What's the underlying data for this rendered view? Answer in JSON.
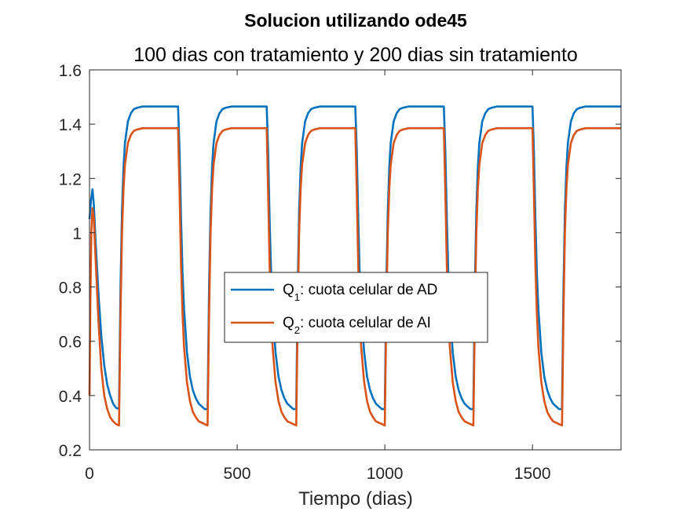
{
  "chart_data": {
    "type": "line",
    "title": "Solucion utilizando ode45",
    "subtitle": "100 dias con tratamiento y 200 dias sin tratamiento",
    "xlabel": "Tiempo (dias)",
    "ylabel": "",
    "xlim": [
      0,
      1800
    ],
    "ylim": [
      0.2,
      1.6
    ],
    "xticks": [
      "0",
      "500",
      "1000",
      "1500"
    ],
    "yticks": [
      "0.2",
      "0.4",
      "0.6",
      "0.8",
      "1",
      "1.2",
      "1.4",
      "1.6"
    ],
    "grid": false,
    "legend_position": "center",
    "series": [
      {
        "name": "Q",
        "name_sub": "1",
        "name_rest": ": cuota celular de AD",
        "color": "#0072BD",
        "x": [
          0,
          5,
          10,
          15,
          20,
          30,
          40,
          50,
          60,
          70,
          80,
          90,
          100,
          105,
          110,
          115,
          120,
          130,
          140,
          150,
          160,
          180,
          200,
          250,
          300,
          305,
          310,
          315,
          320,
          330,
          340,
          350,
          360,
          370,
          380,
          390,
          400,
          405,
          410,
          415,
          420,
          430,
          440,
          450,
          460,
          480,
          500,
          550,
          600,
          605,
          610,
          615,
          620,
          630,
          640,
          650,
          660,
          670,
          680,
          690,
          700,
          705,
          710,
          715,
          720,
          730,
          740,
          750,
          760,
          780,
          800,
          850,
          900,
          905,
          910,
          915,
          920,
          930,
          940,
          950,
          960,
          970,
          980,
          990,
          1000,
          1005,
          1010,
          1015,
          1020,
          1030,
          1040,
          1050,
          1060,
          1080,
          1100,
          1150,
          1200,
          1205,
          1210,
          1215,
          1220,
          1230,
          1240,
          1250,
          1260,
          1270,
          1280,
          1290,
          1300,
          1305,
          1310,
          1315,
          1320,
          1330,
          1340,
          1350,
          1360,
          1380,
          1400,
          1450,
          1500,
          1505,
          1510,
          1515,
          1520,
          1530,
          1540,
          1550,
          1560,
          1570,
          1580,
          1590,
          1600,
          1605,
          1610,
          1615,
          1620,
          1630,
          1640,
          1650,
          1660,
          1680,
          1700,
          1750,
          1800
        ],
        "y": [
          1.05,
          1.12,
          1.16,
          1.1,
          0.98,
          0.78,
          0.62,
          0.51,
          0.44,
          0.4,
          0.37,
          0.355,
          0.35,
          0.8,
          1.08,
          1.24,
          1.33,
          1.41,
          1.44,
          1.455,
          1.46,
          1.465,
          1.465,
          1.465,
          1.465,
          1.3,
          1.05,
          0.85,
          0.72,
          0.56,
          0.47,
          0.42,
          0.39,
          0.37,
          0.36,
          0.35,
          0.35,
          0.8,
          1.08,
          1.24,
          1.33,
          1.41,
          1.44,
          1.455,
          1.46,
          1.465,
          1.465,
          1.465,
          1.465,
          1.3,
          1.05,
          0.85,
          0.72,
          0.56,
          0.47,
          0.42,
          0.39,
          0.37,
          0.36,
          0.35,
          0.35,
          0.8,
          1.08,
          1.24,
          1.33,
          1.41,
          1.44,
          1.455,
          1.46,
          1.465,
          1.465,
          1.465,
          1.465,
          1.3,
          1.05,
          0.85,
          0.72,
          0.56,
          0.47,
          0.42,
          0.39,
          0.37,
          0.36,
          0.35,
          0.35,
          0.8,
          1.08,
          1.24,
          1.33,
          1.41,
          1.44,
          1.455,
          1.46,
          1.465,
          1.465,
          1.465,
          1.465,
          1.3,
          1.05,
          0.85,
          0.72,
          0.56,
          0.47,
          0.42,
          0.39,
          0.37,
          0.36,
          0.35,
          0.35,
          0.8,
          1.08,
          1.24,
          1.33,
          1.41,
          1.44,
          1.455,
          1.46,
          1.465,
          1.465,
          1.465,
          1.465,
          1.3,
          1.05,
          0.85,
          0.72,
          0.56,
          0.47,
          0.42,
          0.39,
          0.37,
          0.36,
          0.35,
          0.35,
          0.8,
          1.08,
          1.24,
          1.33,
          1.41,
          1.44,
          1.455,
          1.46,
          1.465,
          1.465,
          1.465,
          1.465
        ]
      },
      {
        "name": "Q",
        "name_sub": "2",
        "name_rest": ": cuota celular de AI",
        "color": "#D95319",
        "x": [
          0,
          3,
          6,
          10,
          15,
          20,
          30,
          40,
          50,
          60,
          70,
          80,
          90,
          100,
          105,
          110,
          115,
          120,
          130,
          140,
          150,
          160,
          180,
          200,
          250,
          300,
          305,
          310,
          315,
          320,
          330,
          340,
          350,
          360,
          370,
          380,
          390,
          400,
          405,
          410,
          415,
          420,
          430,
          440,
          450,
          460,
          480,
          500,
          550,
          600,
          605,
          610,
          615,
          620,
          630,
          640,
          650,
          660,
          670,
          680,
          690,
          700,
          705,
          710,
          715,
          720,
          730,
          740,
          750,
          760,
          780,
          800,
          850,
          900,
          905,
          910,
          915,
          920,
          930,
          940,
          950,
          960,
          970,
          980,
          990,
          1000,
          1005,
          1010,
          1015,
          1020,
          1030,
          1040,
          1050,
          1060,
          1080,
          1100,
          1150,
          1200,
          1205,
          1210,
          1215,
          1220,
          1230,
          1240,
          1250,
          1260,
          1270,
          1280,
          1290,
          1300,
          1305,
          1310,
          1315,
          1320,
          1330,
          1340,
          1350,
          1360,
          1380,
          1400,
          1450,
          1500,
          1505,
          1510,
          1515,
          1520,
          1530,
          1540,
          1550,
          1560,
          1570,
          1580,
          1590,
          1600,
          1605,
          1610,
          1615,
          1620,
          1630,
          1640,
          1650,
          1660,
          1680,
          1700,
          1750,
          1800
        ],
        "y": [
          0.4,
          0.75,
          1.0,
          1.09,
          1.05,
          0.92,
          0.68,
          0.5,
          0.4,
          0.35,
          0.32,
          0.305,
          0.295,
          0.29,
          0.7,
          1.0,
          1.16,
          1.25,
          1.33,
          1.36,
          1.375,
          1.38,
          1.385,
          1.385,
          1.385,
          1.385,
          1.15,
          0.88,
          0.7,
          0.58,
          0.45,
          0.38,
          0.34,
          0.32,
          0.305,
          0.3,
          0.295,
          0.29,
          0.7,
          1.0,
          1.16,
          1.25,
          1.33,
          1.36,
          1.375,
          1.38,
          1.385,
          1.385,
          1.385,
          1.385,
          1.15,
          0.88,
          0.7,
          0.58,
          0.45,
          0.38,
          0.34,
          0.32,
          0.305,
          0.3,
          0.295,
          0.29,
          0.7,
          1.0,
          1.16,
          1.25,
          1.33,
          1.36,
          1.375,
          1.38,
          1.385,
          1.385,
          1.385,
          1.385,
          1.15,
          0.88,
          0.7,
          0.58,
          0.45,
          0.38,
          0.34,
          0.32,
          0.305,
          0.3,
          0.295,
          0.29,
          0.7,
          1.0,
          1.16,
          1.25,
          1.33,
          1.36,
          1.375,
          1.38,
          1.385,
          1.385,
          1.385,
          1.385,
          1.15,
          0.88,
          0.7,
          0.58,
          0.45,
          0.38,
          0.34,
          0.32,
          0.305,
          0.3,
          0.295,
          0.29,
          0.7,
          1.0,
          1.16,
          1.25,
          1.33,
          1.36,
          1.375,
          1.38,
          1.385,
          1.385,
          1.385,
          1.385,
          1.15,
          0.88,
          0.7,
          0.58,
          0.45,
          0.38,
          0.34,
          0.32,
          0.305,
          0.3,
          0.295,
          0.29,
          0.7,
          1.0,
          1.16,
          1.25,
          1.33,
          1.36,
          1.375,
          1.38,
          1.385,
          1.385,
          1.385,
          1.385
        ]
      }
    ]
  }
}
